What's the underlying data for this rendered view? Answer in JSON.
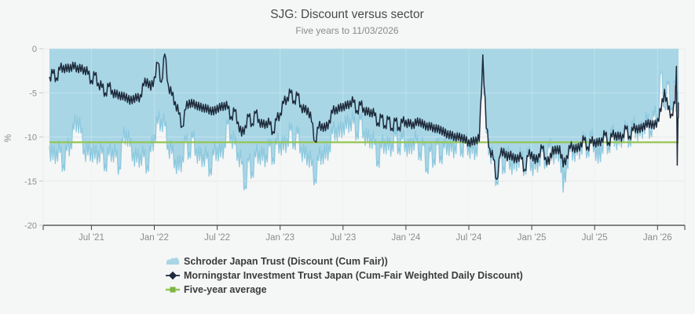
{
  "chart_data": {
    "type": "line",
    "title": "SJG: Discount versus sector",
    "subtitle": "Five years to 11/03/2026",
    "ylabel": "%",
    "ylim": [
      -20,
      0
    ],
    "grid": true,
    "legend_position": "bottom-left",
    "colors": {
      "background": "#f5f6f6",
      "gridline": "#e2e2e2",
      "axis_line": "#3f3f3f",
      "tick_label": "#8c8c8c"
    },
    "y_ticks": [
      0,
      -5,
      -10,
      -15,
      -20
    ],
    "x_domain_months": [
      0,
      60
    ],
    "x_ticks": [
      {
        "t": 4,
        "label": "Jul '21"
      },
      {
        "t": 10,
        "label": "Jan '22"
      },
      {
        "t": 16,
        "label": "Jul '22"
      },
      {
        "t": 22,
        "label": "Jan '23"
      },
      {
        "t": 28,
        "label": "Jul '23"
      },
      {
        "t": 34,
        "label": "Jan '24"
      },
      {
        "t": 40,
        "label": "Jul '24"
      },
      {
        "t": 46,
        "label": "Jan '25"
      },
      {
        "t": 52,
        "label": "Jul '25"
      },
      {
        "t": 58,
        "label": "Jan '26"
      }
    ],
    "series": [
      {
        "name": "Schroder Japan Trust (Discount (Cum Fair))",
        "type": "area",
        "fill_color": "#a8d6e5",
        "line_color": "#8cc8de",
        "jitter": 1.25,
        "t0": 0,
        "dt": 0.33333,
        "values": [
          -11.0,
          -12.6,
          -11.4,
          -11.8,
          -13.1,
          -11.6,
          -10.6,
          -9.2,
          -7.7,
          -9.6,
          -11.3,
          -12.1,
          -11.2,
          -12.5,
          -11.5,
          -11.9,
          -13.0,
          -12.1,
          -11.3,
          -12.3,
          -13.4,
          -10.5,
          -9.2,
          -11.1,
          -11.7,
          -12.9,
          -11.9,
          -12.3,
          -13.2,
          -11.7,
          -9.7,
          -8.5,
          -7.9,
          -8.8,
          -10.9,
          -11.9,
          -12.5,
          -13.8,
          -12.2,
          -10.5,
          -11.7,
          -10.1,
          -11.3,
          -12.7,
          -11.9,
          -12.5,
          -13.6,
          -12.1,
          -11.1,
          -12.3,
          -10.7,
          -8.6,
          -9.7,
          -10.9,
          -11.7,
          -13.1,
          -15.6,
          -12.7,
          -13.9,
          -12.3,
          -11.5,
          -12.7,
          -11.9,
          -11.1,
          -12.3,
          -10.9,
          -10.5,
          -11.5,
          -10.1,
          -9.3,
          -10.5,
          -9.7,
          -11.1,
          -12.5,
          -11.7,
          -13.3,
          -14.7,
          -12.7,
          -11.5,
          -12.5,
          -10.9,
          -9.7,
          -8.9,
          -10.0,
          -8.3,
          -9.1,
          -7.9,
          -8.5,
          -9.5,
          -8.1,
          -9.3,
          -10.7,
          -9.7,
          -10.9,
          -12.7,
          -11.3,
          -10.3,
          -11.5,
          -10.7,
          -9.9,
          -11.1,
          -10.3,
          -10.5,
          -11.9,
          -10.1,
          -10.7,
          -11.7,
          -11.0,
          -13.6,
          -11.7,
          -12.5,
          -10.9,
          -12.1,
          -11.3,
          -10.5,
          -11.7,
          -10.9,
          -10.3,
          -11.3,
          -10.7,
          -10.9,
          -11.9,
          -11.1,
          -10.7,
          -1.1,
          -9.6,
          -11.4,
          -12.7,
          -15.1,
          -12.3,
          -13.3,
          -12.0,
          -12.7,
          -13.7,
          -12.1,
          -12.5,
          -13.5,
          -12.0,
          -12.9,
          -13.7,
          -12.3,
          -11.7,
          -12.7,
          -11.3,
          -11.5,
          -12.5,
          -11.1,
          -16.3,
          -12.7,
          -11.7,
          -11.3,
          -12.1,
          -10.9,
          -10.5,
          -11.5,
          -10.1,
          -10.7,
          -13.0,
          -10.9,
          -10.1,
          -11.0,
          -9.7,
          -9.9,
          -10.9,
          -9.5,
          -9.3,
          -10.3,
          -8.9,
          -8.9,
          -9.9,
          -8.5,
          -8.3,
          -9.3,
          -7.7,
          -7.7,
          -2.6,
          -6.6,
          -4.0,
          -6.7,
          -3.9
        ],
        "tail": [
          [
            59.8,
            -6.9
          ],
          [
            59.9,
            -5.6
          ],
          [
            60,
            -6.9
          ]
        ]
      },
      {
        "name": "Morningstar Investment Trust Japan (Cum-Fair Weighted Daily Discount)",
        "type": "line",
        "line_color": "#1e2b3c",
        "jitter": 0.6,
        "t0": 0,
        "dt": 0.33333,
        "values": [
          -3.2,
          -2.8,
          -3.3,
          -2.4,
          -1.9,
          -2.6,
          -1.8,
          -2.3,
          -1.9,
          -2.6,
          -2.1,
          -2.9,
          -3.6,
          -3.0,
          -3.9,
          -4.4,
          -5.0,
          -4.3,
          -4.7,
          -5.5,
          -4.9,
          -5.8,
          -5.1,
          -6.3,
          -5.3,
          -5.9,
          -5.2,
          -4.2,
          -3.4,
          -4.7,
          -3.2,
          -1.6,
          -3.8,
          -0.6,
          -4.1,
          -5.3,
          -6.0,
          -7.4,
          -8.8,
          -6.9,
          -5.8,
          -6.6,
          -6.0,
          -7.0,
          -6.3,
          -7.2,
          -6.6,
          -7.5,
          -6.4,
          -7.0,
          -6.1,
          -6.8,
          -7.7,
          -7.1,
          -8.3,
          -9.9,
          -8.7,
          -7.7,
          -8.5,
          -7.3,
          -8.0,
          -8.9,
          -8.2,
          -8.6,
          -9.4,
          -8.1,
          -7.3,
          -6.2,
          -5.5,
          -5.0,
          -5.9,
          -5.3,
          -6.4,
          -7.2,
          -6.7,
          -8.3,
          -10.5,
          -9.0,
          -8.5,
          -9.3,
          -8.1,
          -7.3,
          -6.6,
          -7.1,
          -6.2,
          -6.8,
          -5.9,
          -6.1,
          -7.0,
          -6.4,
          -6.7,
          -7.5,
          -6.9,
          -7.6,
          -8.4,
          -7.8,
          -8.7,
          -8.0,
          -9.0,
          -8.2,
          -8.9,
          -8.4,
          -8.1,
          -8.8,
          -8.3,
          -8.7,
          -7.9,
          -9.0,
          -8.4,
          -9.2,
          -8.6,
          -9.5,
          -8.8,
          -9.9,
          -9.3,
          -10.2,
          -9.6,
          -10.4,
          -9.7,
          -10.7,
          -10.3,
          -10.9,
          -10.0,
          -10.5,
          -0.7,
          -9.0,
          -11.3,
          -12.5,
          -14.8,
          -12.1,
          -11.3,
          -12.7,
          -11.6,
          -12.9,
          -12.0,
          -12.5,
          -13.7,
          -12.2,
          -11.7,
          -13.0,
          -11.9,
          -11.3,
          -12.3,
          -13.1,
          -11.1,
          -11.9,
          -11.0,
          -13.4,
          -12.1,
          -11.3,
          -10.9,
          -11.7,
          -10.6,
          -10.4,
          -11.1,
          -10.7,
          -10.3,
          -11.0,
          -10.1,
          -9.8,
          -10.6,
          -10.0,
          -9.5,
          -10.3,
          -9.7,
          -9.1,
          -9.9,
          -9.3,
          -8.7,
          -9.5,
          -8.4,
          -8.9,
          -8.1,
          -9.1,
          -7.9,
          -7.1,
          -4.6,
          -6.9,
          -7.4,
          -6.2
        ],
        "tail": [
          [
            59.8,
            -2.0
          ],
          [
            59.88,
            -13.2
          ],
          [
            59.95,
            -7.8
          ],
          [
            60,
            -6.2
          ]
        ]
      },
      {
        "name": "Five-year average",
        "type": "hline",
        "value": -10.6,
        "line_color": "#96c655",
        "marker_color": "#7db443"
      }
    ]
  }
}
